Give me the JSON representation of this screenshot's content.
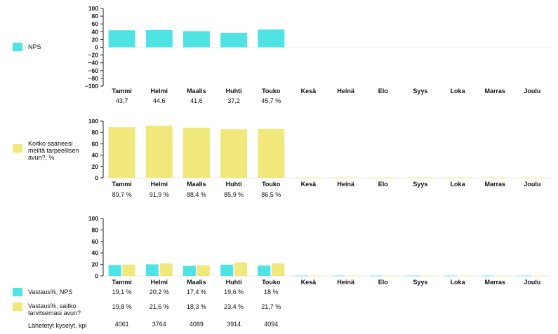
{
  "months": [
    "Tammi",
    "Helmi",
    "Maalis",
    "Huhti",
    "Touko",
    "Kesä",
    "Heinä",
    "Elo",
    "Syys",
    "Loka",
    "Marras",
    "Joulu"
  ],
  "colors": {
    "cyan": "#4fe3e3",
    "yellow": "#f0e87a",
    "axis": "#222222",
    "grid": "#dddddd"
  },
  "legend": {
    "nps": "NPS",
    "help": "Koitko saaneesi meiltä tarpeellisen avun?, %",
    "resp_nps": "Vastaus%, NPS",
    "resp_help": "Vastaus%, saitko tarvitsemasi avun?",
    "sent": "Lähetetyt kyselyt, kpl"
  },
  "chart_data": [
    {
      "type": "bar",
      "title": "NPS",
      "categories": [
        "Tammi",
        "Helmi",
        "Maalis",
        "Huhti",
        "Touko",
        "Kesä",
        "Heinä",
        "Elo",
        "Syys",
        "Loka",
        "Marras",
        "Joulu"
      ],
      "series": [
        {
          "name": "NPS",
          "color": "#4fe3e3",
          "values": [
            43.7,
            44.6,
            41.6,
            37.2,
            45.7,
            null,
            null,
            null,
            null,
            null,
            null,
            null
          ]
        }
      ],
      "value_labels": [
        "43,7",
        "44,6",
        "41,6",
        "37,2",
        "45,7 %"
      ],
      "yticks": [
        "100",
        "80",
        "60",
        "40",
        "20",
        "0",
        "−20",
        "−40",
        "−60",
        "−80",
        "−100"
      ],
      "ylim": [
        -100,
        100
      ]
    },
    {
      "type": "bar",
      "title": "Koitko saaneesi meiltä tarpeellisen avun?, %",
      "categories": [
        "Tammi",
        "Helmi",
        "Maalis",
        "Huhti",
        "Touko",
        "Kesä",
        "Heinä",
        "Elo",
        "Syys",
        "Loka",
        "Marras",
        "Joulu"
      ],
      "series": [
        {
          "name": "Koitko saaneesi meiltä tarpeellisen avun?, %",
          "color": "#f0e87a",
          "values": [
            89.7,
            91.9,
            88.4,
            85.9,
            86.5,
            0.4,
            0.4,
            0.4,
            0.4,
            0.4,
            0.4,
            0.4
          ]
        }
      ],
      "value_labels": [
        "89,7 %",
        "91,9 %",
        "88,4 %",
        "85,9 %",
        "86,5 %"
      ],
      "yticks": [
        "100",
        "80",
        "60",
        "40",
        "20",
        "0"
      ],
      "ylim": [
        0,
        100
      ]
    },
    {
      "type": "bar",
      "title": "Vastaus%",
      "categories": [
        "Tammi",
        "Helmi",
        "Maalis",
        "Huhti",
        "Touko",
        "Kesä",
        "Heinä",
        "Elo",
        "Syys",
        "Loka",
        "Marras",
        "Joulu"
      ],
      "series": [
        {
          "name": "Vastaus%, NPS",
          "color": "#4fe3e3",
          "values": [
            19.1,
            20.2,
            17.4,
            19.6,
            18,
            0.4,
            0.4,
            0.4,
            0.4,
            0.4,
            0.4,
            0.4
          ]
        },
        {
          "name": "Vastaus%, saitko tarvitsemasi avun?",
          "color": "#f0e87a",
          "values": [
            19.8,
            21.6,
            18.3,
            23.4,
            21.7,
            0.4,
            0.4,
            0.4,
            0.4,
            0.4,
            0.4,
            0.4
          ]
        }
      ],
      "value_labels": {
        "resp_nps": [
          "19,1 %",
          "20,2 %",
          "17,4 %",
          "19,6 %",
          "18 %"
        ],
        "resp_help": [
          "19,8 %",
          "21,6 %",
          "18,3 %",
          "23,4 %",
          "21,7 %"
        ],
        "sent": [
          "4061",
          "3764",
          "4089",
          "3914",
          "4094"
        ]
      },
      "sent_surveys": [
        4061,
        3764,
        4089,
        3914,
        4094
      ],
      "yticks": [
        "100",
        "80",
        "60",
        "40",
        "20",
        "0"
      ],
      "ylim": [
        0,
        100
      ]
    }
  ]
}
